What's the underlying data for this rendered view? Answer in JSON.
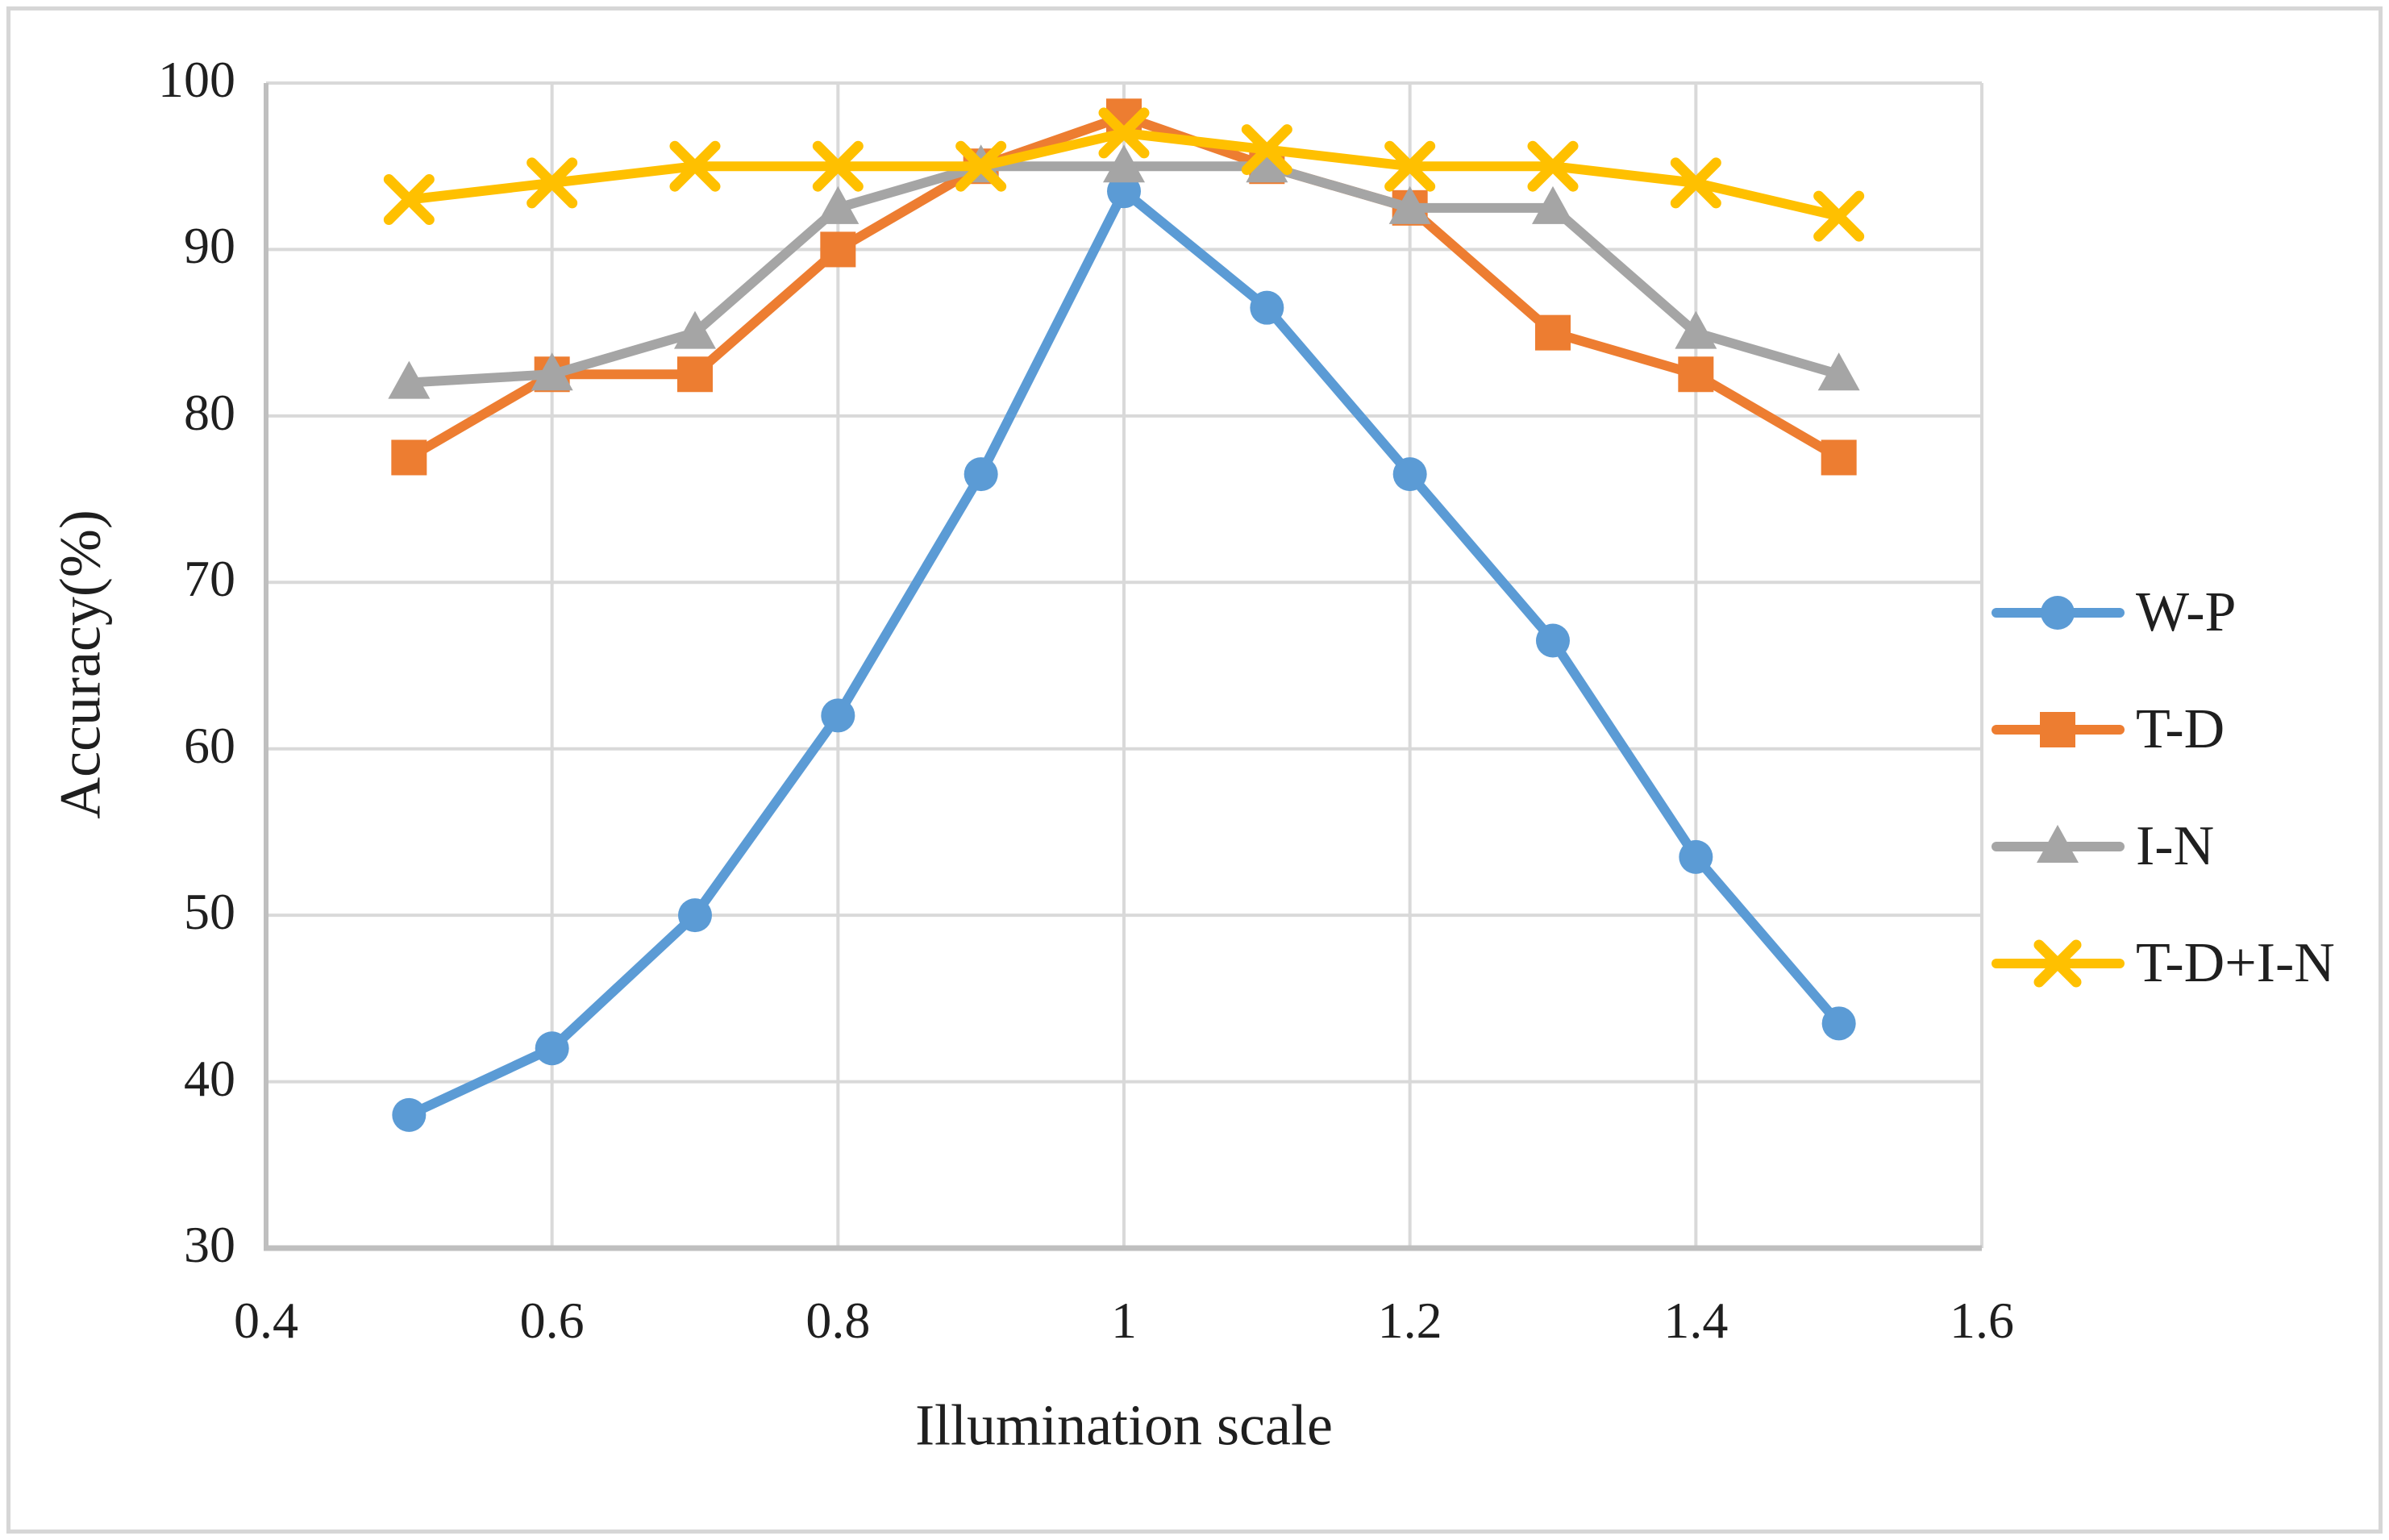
{
  "chart_data": {
    "type": "line",
    "title": "",
    "xlabel": "Illumination scale",
    "ylabel": "Accuracy(%)",
    "x": [
      0.5,
      0.6,
      0.7,
      0.8,
      0.9,
      1,
      1.1,
      1.2,
      1.3,
      1.4,
      1.5
    ],
    "xlim": [
      0.4,
      1.6
    ],
    "ylim": [
      30,
      100
    ],
    "x_ticks": [
      {
        "value": 0.4,
        "label": "0.4"
      },
      {
        "value": 0.6,
        "label": "0.6"
      },
      {
        "value": 0.8,
        "label": "0.8"
      },
      {
        "value": 1,
        "label": "1"
      },
      {
        "value": 1.2,
        "label": "1.2"
      },
      {
        "value": 1.4,
        "label": "1.4"
      },
      {
        "value": 1.6,
        "label": "1.6"
      }
    ],
    "y_ticks": [
      {
        "value": 100,
        "label": "100"
      },
      {
        "value": 90,
        "label": "90"
      },
      {
        "value": 80,
        "label": "80"
      },
      {
        "value": 70,
        "label": "70"
      },
      {
        "value": 60,
        "label": "60"
      },
      {
        "value": 50,
        "label": "50"
      },
      {
        "value": 40,
        "label": "40"
      },
      {
        "value": 30,
        "label": "30"
      }
    ],
    "grid": true,
    "legend_position": "right",
    "series": [
      {
        "name": "W-P",
        "marker": "circle",
        "color": "#5B9BD5",
        "values": [
          38,
          42,
          50,
          62,
          76.5,
          93.5,
          86.5,
          76.5,
          66.5,
          53.5,
          43.5
        ]
      },
      {
        "name": "T-D",
        "marker": "square",
        "color": "#ED7D31",
        "values": [
          77.5,
          82.5,
          82.5,
          90,
          95,
          98,
          95,
          92.5,
          85,
          82.5,
          77.5
        ]
      },
      {
        "name": "I-N",
        "marker": "triangle",
        "color": "#A5A5A5",
        "values": [
          82,
          82.5,
          85,
          92.5,
          95,
          95,
          95,
          92.5,
          92.5,
          85,
          82.5
        ]
      },
      {
        "name": "T-D+I-N",
        "marker": "x",
        "color": "#FFC000",
        "values": [
          93,
          94,
          95,
          95,
          95,
          97,
          96,
          95,
          95,
          94,
          92
        ]
      }
    ]
  },
  "style_colors": {
    "gridline": "#D9D9D9",
    "axis_line": "#BFBFBF",
    "text": "#1F1F1F",
    "figure_border": "#D6D6D6",
    "background": "#FFFFFF"
  }
}
